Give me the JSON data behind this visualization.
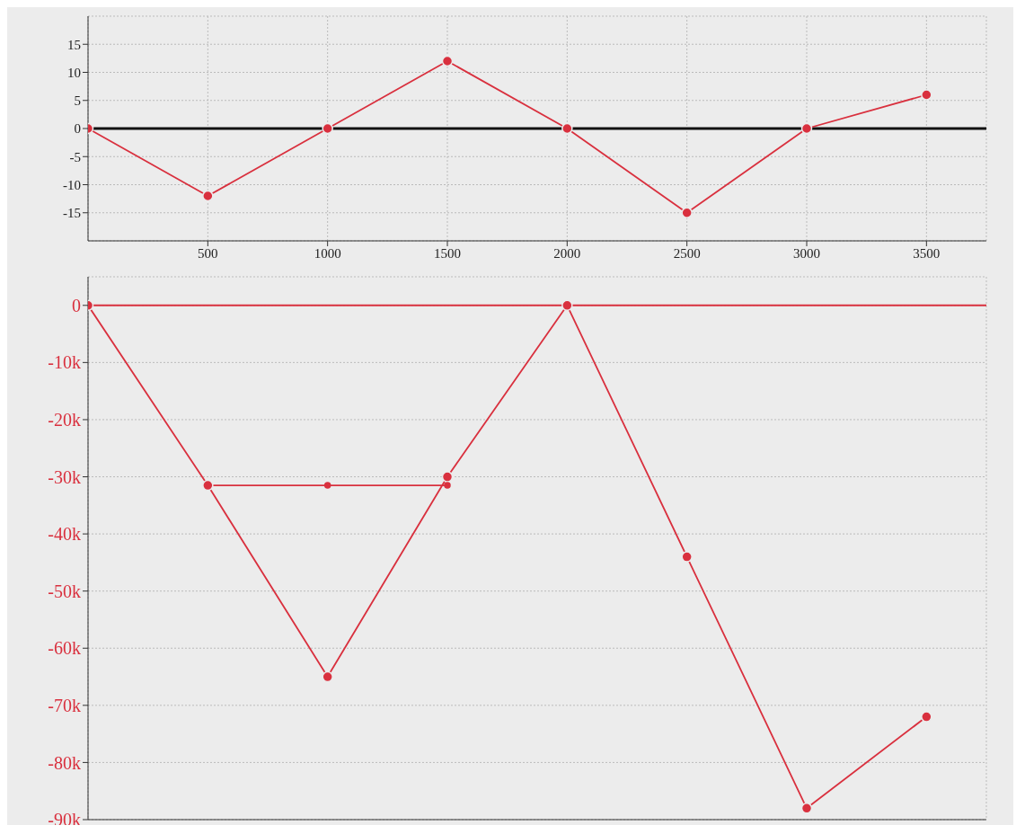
{
  "chart_data": [
    {
      "type": "line",
      "x": [
        0,
        500,
        1000,
        1500,
        2000,
        2500,
        3000,
        3500
      ],
      "series": [
        {
          "color": "#d9303e",
          "values": [
            0,
            -12,
            0,
            12,
            0,
            -15,
            0,
            6
          ]
        }
      ],
      "xlim": [
        0,
        3750
      ],
      "xticks": [
        500,
        1000,
        1500,
        2000,
        2500,
        3000,
        3500
      ],
      "ylim": [
        -20,
        20
      ],
      "yticks": [
        -15,
        -10,
        -5,
        0,
        5,
        10,
        15
      ],
      "ref_lines": [
        {
          "axis": "y",
          "value": 0,
          "color": "#111111"
        }
      ],
      "grid": true,
      "marker": "circle",
      "line_style": "solid",
      "legend": false
    },
    {
      "type": "line",
      "series": [
        {
          "color": "#d9303e",
          "x": [
            0,
            500,
            1000,
            1500,
            2000,
            2500,
            3000,
            3500
          ],
          "values": [
            0,
            -31500,
            -65000,
            -30000,
            0,
            -44000,
            -88000,
            -72000
          ]
        },
        {
          "color": "#d9303e",
          "x": [
            500,
            1000,
            1500
          ],
          "values": [
            -31500,
            -31500,
            -31500
          ]
        }
      ],
      "xlim": [
        0,
        3750
      ],
      "xticks": [
        500,
        1000,
        1500,
        2000,
        2500,
        3000,
        3500
      ],
      "ylim": [
        -90000,
        5000
      ],
      "yticks": [
        0,
        {
          "value": -10000,
          "label": "-10k"
        },
        {
          "value": -20000,
          "label": "-20k"
        },
        {
          "value": -30000,
          "label": "-30k"
        },
        {
          "value": -40000,
          "label": "-40k"
        },
        {
          "value": -50000,
          "label": "-50k"
        },
        {
          "value": -60000,
          "label": "-60k"
        },
        {
          "value": -70000,
          "label": "-70k"
        },
        {
          "value": -80000,
          "label": "-80k"
        },
        {
          "value": -90000,
          "label": "-90k"
        }
      ],
      "ref_lines": [
        {
          "axis": "y",
          "value": 0,
          "color": "#d9303e"
        }
      ],
      "tick_labels": "y",
      "grid": true,
      "marker": "circle",
      "line_style": "solid",
      "legend": false
    }
  ]
}
